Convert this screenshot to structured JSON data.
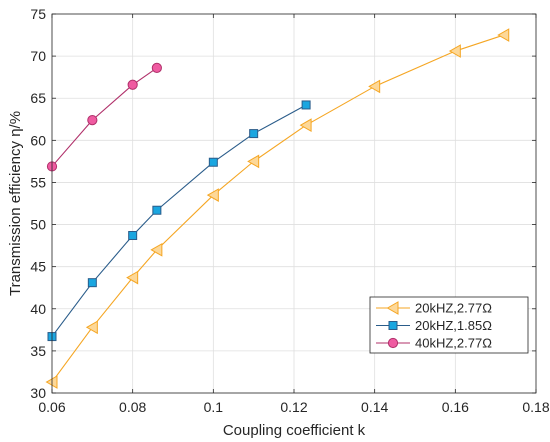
{
  "chart_data": {
    "type": "line",
    "xlabel": "Coupling coefficient k",
    "ylabel": "Transmission efficiency η/%",
    "xlim": [
      0.06,
      0.18
    ],
    "ylim": [
      30,
      75
    ],
    "xticks": [
      0.06,
      0.08,
      0.1,
      0.12,
      0.14,
      0.16,
      0.18
    ],
    "xtick_labels": [
      "0.06",
      "0.08",
      "0.1",
      "0.12",
      "0.14",
      "0.16",
      "0.18"
    ],
    "yticks": [
      30,
      35,
      40,
      45,
      50,
      55,
      60,
      65,
      70,
      75
    ],
    "ytick_labels": [
      "30",
      "35",
      "40",
      "45",
      "50",
      "55",
      "60",
      "65",
      "70",
      "75"
    ],
    "grid": true,
    "legend_position": "bottom-right",
    "series": [
      {
        "name": "20kHZ,2.77Ω",
        "marker": "triangle-left",
        "line_color": "#f5a623",
        "fill_color": "#fdd898",
        "x": [
          0.06,
          0.07,
          0.08,
          0.086,
          0.1,
          0.11,
          0.123,
          0.14,
          0.16,
          0.172
        ],
        "y": [
          31.3,
          37.8,
          43.7,
          47.0,
          53.5,
          57.5,
          61.8,
          66.4,
          70.6,
          72.5
        ]
      },
      {
        "name": "20kHZ,1.85Ω",
        "marker": "square",
        "line_color": "#2a5c8a",
        "fill_color": "#1aa6e0",
        "x": [
          0.06,
          0.07,
          0.08,
          0.086,
          0.1,
          0.11,
          0.123
        ],
        "y": [
          36.7,
          43.1,
          48.7,
          51.7,
          57.4,
          60.8,
          64.2
        ]
      },
      {
        "name": "40kHZ,2.77Ω",
        "marker": "circle",
        "line_color": "#b0306a",
        "fill_color": "#ef5ba1",
        "x": [
          0.06,
          0.07,
          0.08,
          0.086
        ],
        "y": [
          56.9,
          62.4,
          66.6,
          68.6
        ]
      }
    ]
  }
}
